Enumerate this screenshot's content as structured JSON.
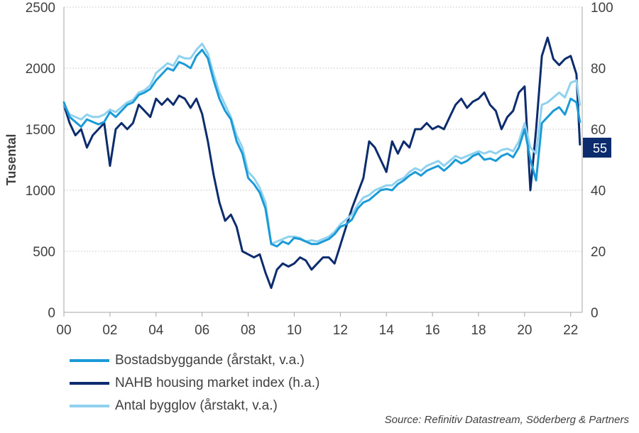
{
  "chart_data": {
    "type": "line",
    "y_left_label": "Tusental",
    "y_left_lim": [
      0,
      2500
    ],
    "y_left_ticks": [
      "0",
      "500",
      "1000",
      "1500",
      "2000",
      "2500"
    ],
    "y_right_lim": [
      0,
      100
    ],
    "y_right_ticks": [
      "0",
      "20",
      "40",
      "60",
      "80",
      "100"
    ],
    "x_lim": [
      2000,
      2022.5
    ],
    "x_ticks": [
      "00",
      "02",
      "04",
      "06",
      "08",
      "10",
      "12",
      "14",
      "16",
      "18",
      "20",
      "22"
    ],
    "grid": "horizontal dotted",
    "end_label": "55",
    "series": [
      {
        "name": "Bostadsbyggande (årstakt, v.a.)",
        "axis": "left",
        "color": "#1a9ad6",
        "x": [
          2000.0,
          2000.25,
          2000.5,
          2000.75,
          2001.0,
          2001.25,
          2001.5,
          2001.75,
          2002.0,
          2002.25,
          2002.5,
          2002.75,
          2003.0,
          2003.25,
          2003.5,
          2003.75,
          2004.0,
          2004.25,
          2004.5,
          2004.75,
          2005.0,
          2005.25,
          2005.5,
          2005.75,
          2006.0,
          2006.25,
          2006.5,
          2006.75,
          2007.0,
          2007.25,
          2007.5,
          2007.75,
          2008.0,
          2008.25,
          2008.5,
          2008.75,
          2009.0,
          2009.25,
          2009.5,
          2009.75,
          2010.0,
          2010.25,
          2010.5,
          2010.75,
          2011.0,
          2011.25,
          2011.5,
          2011.75,
          2012.0,
          2012.25,
          2012.5,
          2012.75,
          2013.0,
          2013.25,
          2013.5,
          2013.75,
          2014.0,
          2014.25,
          2014.5,
          2014.75,
          2015.0,
          2015.25,
          2015.5,
          2015.75,
          2016.0,
          2016.25,
          2016.5,
          2016.75,
          2017.0,
          2017.25,
          2017.5,
          2017.75,
          2018.0,
          2018.25,
          2018.5,
          2018.75,
          2019.0,
          2019.25,
          2019.5,
          2019.75,
          2020.0,
          2020.25,
          2020.5,
          2020.75,
          2021.0,
          2021.25,
          2021.5,
          2021.75,
          2022.0,
          2022.25,
          2022.4
        ],
        "values": [
          1720,
          1600,
          1560,
          1520,
          1580,
          1560,
          1540,
          1560,
          1640,
          1600,
          1650,
          1700,
          1720,
          1780,
          1800,
          1830,
          1900,
          1950,
          2000,
          1980,
          2050,
          2030,
          2000,
          2100,
          2150,
          2080,
          1900,
          1750,
          1650,
          1580,
          1400,
          1300,
          1100,
          1050,
          980,
          850,
          560,
          540,
          580,
          560,
          610,
          600,
          580,
          560,
          560,
          580,
          600,
          640,
          700,
          720,
          760,
          850,
          900,
          920,
          960,
          1000,
          1010,
          1000,
          1050,
          1080,
          1120,
          1150,
          1120,
          1160,
          1180,
          1200,
          1160,
          1200,
          1250,
          1220,
          1240,
          1280,
          1300,
          1250,
          1260,
          1240,
          1280,
          1300,
          1270,
          1350,
          1500,
          1250,
          1080,
          1550,
          1600,
          1650,
          1680,
          1620,
          1750,
          1720,
          1560
        ]
      },
      {
        "name": "NAHB housing market index (h.a.)",
        "axis": "right",
        "color": "#0c2c6e",
        "x": [
          2000.0,
          2000.25,
          2000.5,
          2000.75,
          2001.0,
          2001.25,
          2001.5,
          2001.75,
          2002.0,
          2002.25,
          2002.5,
          2002.75,
          2003.0,
          2003.25,
          2003.5,
          2003.75,
          2004.0,
          2004.25,
          2004.5,
          2004.75,
          2005.0,
          2005.25,
          2005.5,
          2005.75,
          2006.0,
          2006.25,
          2006.5,
          2006.75,
          2007.0,
          2007.25,
          2007.5,
          2007.75,
          2008.0,
          2008.25,
          2008.5,
          2008.75,
          2009.0,
          2009.25,
          2009.5,
          2009.75,
          2010.0,
          2010.25,
          2010.5,
          2010.75,
          2011.0,
          2011.25,
          2011.5,
          2011.75,
          2012.0,
          2012.25,
          2012.5,
          2012.75,
          2013.0,
          2013.25,
          2013.5,
          2013.75,
          2014.0,
          2014.25,
          2014.5,
          2014.75,
          2015.0,
          2015.25,
          2015.5,
          2015.75,
          2016.0,
          2016.25,
          2016.5,
          2016.75,
          2017.0,
          2017.25,
          2017.5,
          2017.75,
          2018.0,
          2018.25,
          2018.5,
          2018.75,
          2019.0,
          2019.25,
          2019.5,
          2019.75,
          2020.0,
          2020.25,
          2020.5,
          2020.75,
          2021.0,
          2021.25,
          2021.5,
          2021.75,
          2022.0,
          2022.25,
          2022.4
        ],
        "values": [
          68,
          62,
          58,
          60,
          54,
          58,
          60,
          62,
          48,
          60,
          62,
          60,
          62,
          68,
          66,
          64,
          70,
          68,
          70,
          68,
          71,
          70,
          67,
          70,
          65,
          56,
          45,
          36,
          30,
          32,
          28,
          20,
          19,
          18,
          19,
          13,
          8,
          14,
          16,
          15,
          16,
          18,
          17,
          14,
          16,
          18,
          18,
          16,
          22,
          28,
          34,
          39,
          44,
          56,
          54,
          50,
          46,
          56,
          52,
          56,
          54,
          60,
          60,
          62,
          60,
          61,
          60,
          64,
          68,
          70,
          67,
          69,
          70,
          72,
          68,
          66,
          60,
          64,
          66,
          72,
          74,
          40,
          60,
          84,
          90,
          83,
          81,
          83,
          84,
          78,
          55
        ]
      },
      {
        "name": "Antal bygglov (årstakt, v.a.)",
        "axis": "left",
        "color": "#8fd1ee",
        "x": [
          2000.0,
          2000.25,
          2000.5,
          2000.75,
          2001.0,
          2001.25,
          2001.5,
          2001.75,
          2002.0,
          2002.25,
          2002.5,
          2002.75,
          2003.0,
          2003.25,
          2003.5,
          2003.75,
          2004.0,
          2004.25,
          2004.5,
          2004.75,
          2005.0,
          2005.25,
          2005.5,
          2005.75,
          2006.0,
          2006.25,
          2006.5,
          2006.75,
          2007.0,
          2007.25,
          2007.5,
          2007.75,
          2008.0,
          2008.25,
          2008.5,
          2008.75,
          2009.0,
          2009.25,
          2009.5,
          2009.75,
          2010.0,
          2010.25,
          2010.5,
          2010.75,
          2011.0,
          2011.25,
          2011.5,
          2011.75,
          2012.0,
          2012.25,
          2012.5,
          2012.75,
          2013.0,
          2013.25,
          2013.5,
          2013.75,
          2014.0,
          2014.25,
          2014.5,
          2014.75,
          2015.0,
          2015.25,
          2015.5,
          2015.75,
          2016.0,
          2016.25,
          2016.5,
          2016.75,
          2017.0,
          2017.25,
          2017.5,
          2017.75,
          2018.0,
          2018.25,
          2018.5,
          2018.75,
          2019.0,
          2019.25,
          2019.5,
          2019.75,
          2020.0,
          2020.25,
          2020.5,
          2020.75,
          2021.0,
          2021.25,
          2021.5,
          2021.75,
          2022.0,
          2022.25,
          2022.4
        ],
        "values": [
          1700,
          1620,
          1600,
          1580,
          1620,
          1600,
          1600,
          1620,
          1660,
          1640,
          1680,
          1720,
          1740,
          1800,
          1820,
          1860,
          1960,
          2000,
          2040,
          2020,
          2100,
          2080,
          2080,
          2150,
          2200,
          2120,
          1950,
          1800,
          1700,
          1600,
          1450,
          1350,
          1150,
          1100,
          1020,
          900,
          560,
          580,
          600,
          620,
          620,
          610,
          580,
          590,
          580,
          600,
          620,
          660,
          720,
          760,
          800,
          880,
          940,
          960,
          1000,
          1020,
          1040,
          1040,
          1080,
          1100,
          1150,
          1180,
          1160,
          1200,
          1220,
          1240,
          1200,
          1240,
          1280,
          1260,
          1280,
          1300,
          1320,
          1300,
          1320,
          1300,
          1330,
          1340,
          1320,
          1400,
          1550,
          1350,
          1300,
          1700,
          1720,
          1760,
          1800,
          1760,
          1880,
          1900,
          1700
        ]
      }
    ]
  },
  "source": "Source: Refinitiv Datastream, Söderberg & Partners"
}
